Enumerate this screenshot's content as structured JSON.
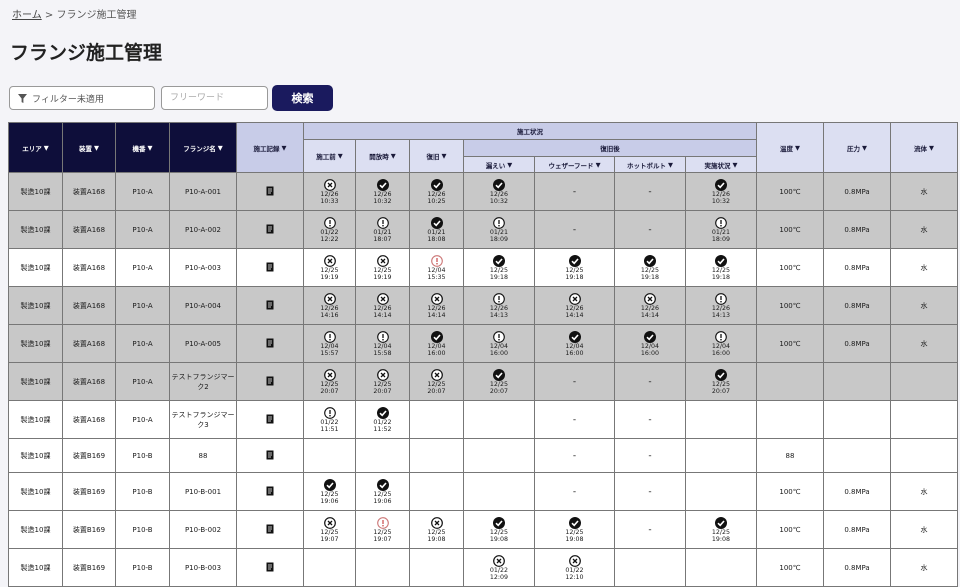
{
  "breadcrumb": {
    "home": "ホーム",
    "sep": ">",
    "current": "フランジ施工管理"
  },
  "title": "フランジ施工管理",
  "filter": {
    "label": "フィルター未適用"
  },
  "search": {
    "placeholder": "フリーワード",
    "button": "検索"
  },
  "headers": {
    "area": "エリア",
    "equipment": "装置",
    "device": "機番",
    "flange": "フランジ名",
    "record": "施工記録",
    "status_group": "施工状況",
    "before": "施工前",
    "loosen": "開放時",
    "restore": "復旧",
    "after_group": "復旧後",
    "leak": "漏えい",
    "weather": "ウェザーフード",
    "hotbolt": "ホットボルト",
    "install": "実施状況",
    "temp": "温度",
    "pressure": "圧力",
    "fluid": "流体"
  },
  "rows": [
    {
      "grey": true,
      "area": "製造10課",
      "equipment": "装置A168",
      "device": "P10-A",
      "flange": "P10-A-001",
      "cells": [
        [
          "x",
          "12/26",
          "10:33"
        ],
        [
          "c",
          "12/26",
          "10:32"
        ],
        [
          "c",
          "12/26",
          "10:25"
        ],
        [
          "c",
          "12/26",
          "10:32"
        ],
        [
          "-"
        ],
        [
          "-"
        ],
        [
          "c",
          "12/26",
          "10:32"
        ]
      ],
      "temp": "100℃",
      "pressure": "0.8MPa",
      "fluid": "水"
    },
    {
      "grey": true,
      "area": "製造10課",
      "equipment": "装置A168",
      "device": "P10-A",
      "flange": "P10-A-002",
      "cells": [
        [
          "w",
          "01/22",
          "12:22"
        ],
        [
          "w",
          "01/21",
          "18:07"
        ],
        [
          "c",
          "01/21",
          "18:08"
        ],
        [
          "w",
          "01/21",
          "18:09"
        ],
        [
          "-"
        ],
        [
          "-"
        ],
        [
          "w",
          "01/21",
          "18:09"
        ]
      ],
      "temp": "100℃",
      "pressure": "0.8MPa",
      "fluid": "水"
    },
    {
      "grey": false,
      "area": "製造10課",
      "equipment": "装置A168",
      "device": "P10-A",
      "flange": "P10-A-003",
      "cells": [
        [
          "x",
          "12/25",
          "19:19"
        ],
        [
          "x",
          "12/25",
          "19:19"
        ],
        [
          "r",
          "12/04",
          "15:35"
        ],
        [
          "c",
          "12/25",
          "19:18"
        ],
        [
          "c",
          "12/25",
          "19:18"
        ],
        [
          "c",
          "12/25",
          "19:18"
        ],
        [
          "c",
          "12/25",
          "19:18"
        ]
      ],
      "temp": "100℃",
      "pressure": "0.8MPa",
      "fluid": "水"
    },
    {
      "grey": true,
      "area": "製造10課",
      "equipment": "装置A168",
      "device": "P10-A",
      "flange": "P10-A-004",
      "cells": [
        [
          "x",
          "12/26",
          "14:16"
        ],
        [
          "x",
          "12/26",
          "14:14"
        ],
        [
          "x",
          "12/26",
          "14:14"
        ],
        [
          "w",
          "12/26",
          "14:13"
        ],
        [
          "x",
          "12/26",
          "14:14"
        ],
        [
          "x",
          "12/26",
          "14:14"
        ],
        [
          "w",
          "12/26",
          "14:13"
        ]
      ],
      "temp": "100℃",
      "pressure": "0.8MPa",
      "fluid": "水"
    },
    {
      "grey": true,
      "area": "製造10課",
      "equipment": "装置A168",
      "device": "P10-A",
      "flange": "P10-A-005",
      "cells": [
        [
          "w",
          "12/04",
          "15:57"
        ],
        [
          "w",
          "12/04",
          "15:58"
        ],
        [
          "c",
          "12/04",
          "16:00"
        ],
        [
          "w",
          "12/04",
          "16:00"
        ],
        [
          "c",
          "12/04",
          "16:00"
        ],
        [
          "c",
          "12/04",
          "16:00"
        ],
        [
          "w",
          "12/04",
          "16:00"
        ]
      ],
      "temp": "100℃",
      "pressure": "0.8MPa",
      "fluid": "水"
    },
    {
      "grey": true,
      "area": "製造10課",
      "equipment": "装置A168",
      "device": "P10-A",
      "flange": "テストフランジマーク2",
      "cells": [
        [
          "x",
          "12/25",
          "20:07"
        ],
        [
          "x",
          "12/25",
          "20:07"
        ],
        [
          "x",
          "12/25",
          "20:07"
        ],
        [
          "c",
          "12/25",
          "20:07"
        ],
        [
          "-"
        ],
        [
          "-"
        ],
        [
          "c",
          "12/25",
          "20:07"
        ]
      ],
      "temp": "",
      "pressure": "",
      "fluid": ""
    },
    {
      "grey": false,
      "area": "製造10課",
      "equipment": "装置A168",
      "device": "P10-A",
      "flange": "テストフランジマーク3",
      "cells": [
        [
          "w",
          "01/22",
          "11:51"
        ],
        [
          "c",
          "01/22",
          "11:52"
        ],
        [
          ""
        ],
        [
          ""
        ],
        [
          "-"
        ],
        [
          "-"
        ],
        [
          ""
        ]
      ],
      "temp": "",
      "pressure": "",
      "fluid": ""
    },
    {
      "grey": false,
      "area": "製造10課",
      "equipment": "装置B169",
      "device": "P10-B",
      "flange": "88",
      "cells": [
        [
          ""
        ],
        [
          ""
        ],
        [
          ""
        ],
        [
          ""
        ],
        [
          "-"
        ],
        [
          "-"
        ],
        [
          ""
        ]
      ],
      "temp": "88",
      "pressure": "",
      "fluid": ""
    },
    {
      "grey": false,
      "area": "製造10課",
      "equipment": "装置B169",
      "device": "P10-B",
      "flange": "P10-B-001",
      "cells": [
        [
          "c",
          "12/25",
          "19:06"
        ],
        [
          "c",
          "12/25",
          "19:06"
        ],
        [
          ""
        ],
        [
          ""
        ],
        [
          "-"
        ],
        [
          "-"
        ],
        [
          ""
        ]
      ],
      "temp": "100℃",
      "pressure": "0.8MPa",
      "fluid": "水"
    },
    {
      "grey": false,
      "area": "製造10課",
      "equipment": "装置B169",
      "device": "P10-B",
      "flange": "P10-B-002",
      "cells": [
        [
          "x",
          "12/25",
          "19:07"
        ],
        [
          "r",
          "12/25",
          "19:07"
        ],
        [
          "x",
          "12/25",
          "19:08"
        ],
        [
          "c",
          "12/25",
          "19:08"
        ],
        [
          "c",
          "12/25",
          "19:08"
        ],
        [
          "-"
        ],
        [
          "c",
          "12/25",
          "19:08"
        ]
      ],
      "temp": "100℃",
      "pressure": "0.8MPa",
      "fluid": "水"
    },
    {
      "grey": false,
      "area": "製造10課",
      "equipment": "装置B169",
      "device": "P10-B",
      "flange": "P10-B-003",
      "cells": [
        [
          ""
        ],
        [
          ""
        ],
        [
          ""
        ],
        [
          "x",
          "01/22",
          "12:09"
        ],
        [
          "x",
          "01/22",
          "12:10"
        ],
        [
          ""
        ],
        [
          ""
        ]
      ],
      "temp": "100℃",
      "pressure": "0.8MPa",
      "fluid": "水"
    }
  ]
}
